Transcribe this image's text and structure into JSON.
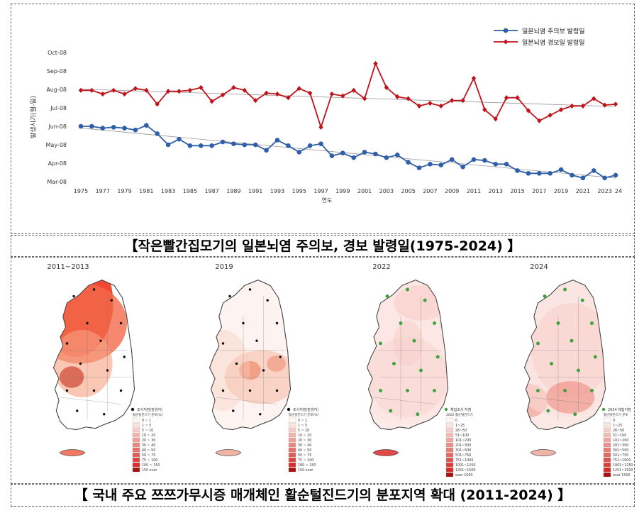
{
  "chart_data": {
    "type": "line",
    "ylabel": "발생시기(월-일)",
    "xlabel": "연도",
    "yticks": [
      "Mar-08",
      "Apr-08",
      "May-08",
      "Jun-08",
      "Jul-08",
      "Aug-08",
      "Sep-08",
      "Oct-08"
    ],
    "y_axis_top_label": "Oct-08",
    "y_axis_bottom_label": "Mar-08",
    "xticks": [
      "1975",
      "1977",
      "1979",
      "1981",
      "1983",
      "1985",
      "1987",
      "1989",
      "1991",
      "1993",
      "1995",
      "1997",
      "1999",
      "2001",
      "2003",
      "2005",
      "2007",
      "2009",
      "2011",
      "2013",
      "2015",
      "2017",
      "2019",
      "2021",
      "2023",
      "24"
    ],
    "x": [
      1975,
      1976,
      1977,
      1978,
      1979,
      1980,
      1981,
      1982,
      1983,
      1984,
      1985,
      1986,
      1987,
      1988,
      1989,
      1990,
      1991,
      1992,
      1993,
      1994,
      1995,
      1996,
      1997,
      1998,
      1999,
      2000,
      2001,
      2002,
      2003,
      2004,
      2005,
      2006,
      2007,
      2008,
      2009,
      2010,
      2011,
      2012,
      2013,
      2014,
      2015,
      2016,
      2017,
      2018,
      2019,
      2020,
      2021,
      2022,
      2023,
      2024
    ],
    "legend_position": "top-right",
    "series": [
      {
        "name": "일본뇌염 주의보 발령일",
        "color": "#2e5fa8",
        "marker": "circle",
        "values": [
          5.0,
          5.0,
          4.9,
          4.95,
          4.9,
          4.8,
          5.05,
          4.6,
          4.0,
          4.3,
          3.95,
          3.95,
          3.95,
          4.15,
          4.05,
          4.0,
          4.0,
          3.7,
          4.25,
          3.95,
          3.6,
          3.95,
          4.05,
          3.4,
          3.55,
          3.3,
          3.6,
          3.5,
          3.3,
          3.45,
          3.05,
          2.75,
          2.95,
          2.9,
          3.2,
          2.8,
          3.2,
          3.15,
          2.95,
          2.95,
          2.6,
          2.45,
          2.45,
          2.45,
          2.65,
          2.35,
          2.2,
          2.6,
          2.2,
          2.35
        ]
      },
      {
        "name": "일본뇌염 경보일 발령일",
        "color": "#c0141c",
        "marker": "diamond",
        "values": [
          6.95,
          6.95,
          6.75,
          6.95,
          6.75,
          7.05,
          6.95,
          6.2,
          6.9,
          6.9,
          6.95,
          7.1,
          6.35,
          6.7,
          7.1,
          6.95,
          6.4,
          6.8,
          6.75,
          6.55,
          7.05,
          6.8,
          4.95,
          6.75,
          6.65,
          6.95,
          6.5,
          8.4,
          7.1,
          6.6,
          6.5,
          6.1,
          6.25,
          6.1,
          6.4,
          6.4,
          7.6,
          5.9,
          5.4,
          6.55,
          6.55,
          5.85,
          5.3,
          5.6,
          5.9,
          6.1,
          6.1,
          6.5,
          6.15,
          6.2
        ]
      }
    ],
    "ylim": [
      2,
      9
    ]
  },
  "captions": {
    "top": "【작은빨간집모기의 일본뇌염 주의보, 경보 발령일(1975-2024) 】",
    "bottom": "【 국내 주요 쯔쯔가무시증 매개체인 활순털진드기의 분포지역 확대 (2011-2024) 】"
  },
  "maps": [
    {
      "title": "2011~2013",
      "legend_title": "조사지점(발생지)",
      "legend_subtitle": "활순털진드기 분포(%)",
      "legend_items": [
        "0 ~ 1",
        "1 ~ 5",
        "5 ~ 10",
        "10 ~ 20",
        "20 ~ 30",
        "30 ~ 40",
        "40 ~ 50",
        "50 ~ 75",
        "75 ~ 100",
        "100 ~ 150",
        "150 over"
      ]
    },
    {
      "title": "2019",
      "legend_title": "조사지점(발생지)",
      "legend_subtitle": "활순털진드기 분포(%)",
      "legend_items": [
        "0 ~ 1",
        "1 ~ 5",
        "5 ~ 10",
        "10 ~ 20",
        "20 ~ 30",
        "30 ~ 40",
        "40 ~ 50",
        "50 ~ 75",
        "75 ~ 100",
        "100 ~ 150",
        "150 over"
      ]
    },
    {
      "title": "2022",
      "legend_title": "채집조사 지점",
      "legend_subtitle": "2022 활순털진드기",
      "legend_items": [
        "0",
        "1~25",
        "26~50",
        "51~100",
        "101~200",
        "201~300",
        "301~500",
        "501~750",
        "751~1000",
        "1001~1250",
        "1251~1500",
        "over 1500"
      ]
    },
    {
      "title": "2024",
      "legend_title": "2024 채집지점",
      "legend_subtitle": "활순털진드기 분포",
      "legend_items": [
        "0",
        "1~25",
        "26~50",
        "51~100",
        "101~200",
        "201~300",
        "301~500",
        "501~750",
        "751~1000",
        "1001~1250",
        "1251~1500",
        "over 1500"
      ]
    }
  ]
}
